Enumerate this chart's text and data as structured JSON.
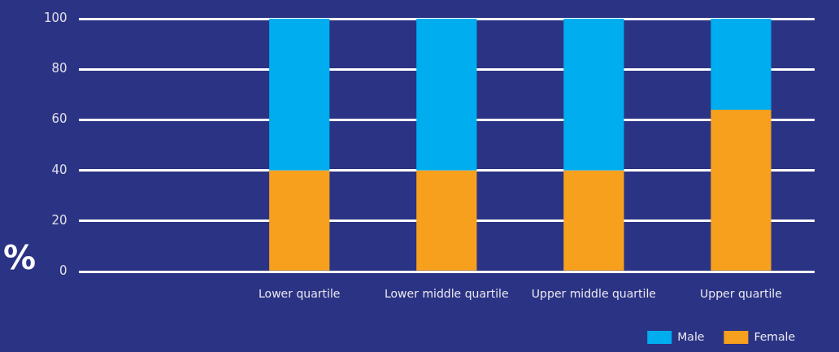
{
  "chart_data": {
    "type": "bar",
    "stacked": true,
    "ylabel": "%",
    "categories": [
      null,
      "Lower quartile",
      "Lower middle quartile",
      "Upper middle quartile",
      "Upper quartile"
    ],
    "series": [
      {
        "name": "Female",
        "color": "#f6a01e",
        "values": [
          null,
          40,
          40,
          40,
          64
        ]
      },
      {
        "name": "Male",
        "color": "#00adee",
        "values": [
          null,
          60,
          60,
          60,
          36
        ]
      }
    ],
    "ylim": [
      0,
      100
    ],
    "yticks": [
      0,
      20,
      40,
      60,
      80,
      100
    ],
    "grid": "y",
    "legend": "bottom right"
  }
}
